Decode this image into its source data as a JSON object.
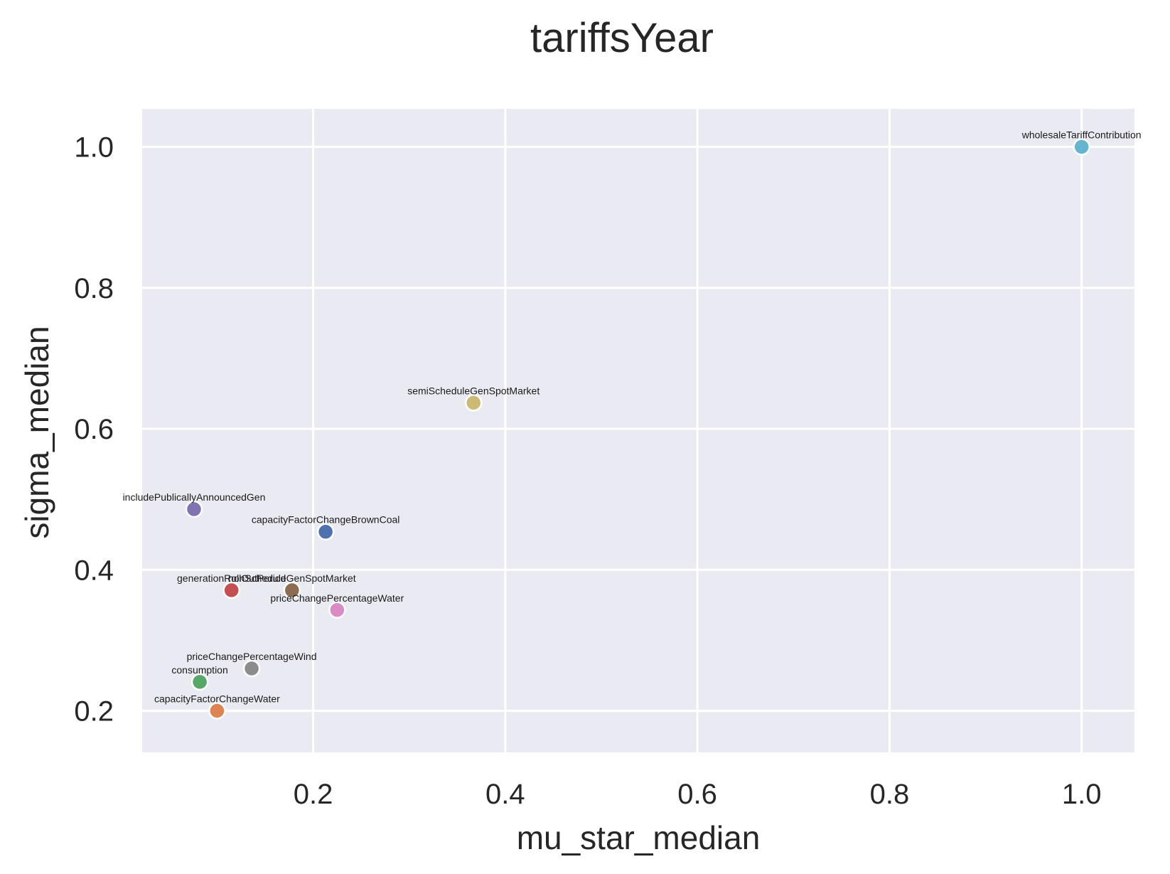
{
  "chart_data": {
    "type": "scatter",
    "title": "tariffsYear",
    "xlabel": "mu_star_median",
    "ylabel": "sigma_median",
    "xlim": [
      0.022,
      1.055
    ],
    "ylim": [
      0.141,
      1.054
    ],
    "xticks": [
      0.2,
      0.4,
      0.6,
      0.8,
      1.0
    ],
    "xtick_labels": [
      "0.2",
      "0.4",
      "0.6",
      "0.8",
      "1.0"
    ],
    "yticks": [
      0.2,
      0.4,
      0.6,
      0.8,
      1.0
    ],
    "ytick_labels": [
      "0.2",
      "0.4",
      "0.6",
      "0.8",
      "1.0"
    ],
    "grid": true,
    "background": "#eaeaf2",
    "points": [
      {
        "label": "wholesaleTariffContribution",
        "x": 1.0,
        "y": 1.0,
        "color": "#64b5cd"
      },
      {
        "label": "semiScheduleGenSpotMarket",
        "x": 0.367,
        "y": 0.637,
        "color": "#ccb974"
      },
      {
        "label": "includePublicallyAnnouncedGen",
        "x": 0.076,
        "y": 0.486,
        "color": "#8172b2"
      },
      {
        "label": "capacityFactorChangeBrownCoal",
        "x": 0.213,
        "y": 0.454,
        "color": "#4c72b0"
      },
      {
        "label": "generationRollOutPeriod",
        "x": 0.115,
        "y": 0.371,
        "color": "#c44e52"
      },
      {
        "label": "nonScheduleGenSpotMarket",
        "x": 0.178,
        "y": 0.371,
        "color": "#8c6d4f"
      },
      {
        "label": "priceChangePercentageWater",
        "x": 0.225,
        "y": 0.343,
        "color": "#da8bc3"
      },
      {
        "label": "priceChangePercentageWind",
        "x": 0.136,
        "y": 0.26,
        "color": "#8c8c8c"
      },
      {
        "label": "consumption",
        "x": 0.082,
        "y": 0.241,
        "color": "#55a868"
      },
      {
        "label": "capacityFactorChangeWater",
        "x": 0.1,
        "y": 0.2,
        "color": "#dd8452"
      }
    ]
  }
}
